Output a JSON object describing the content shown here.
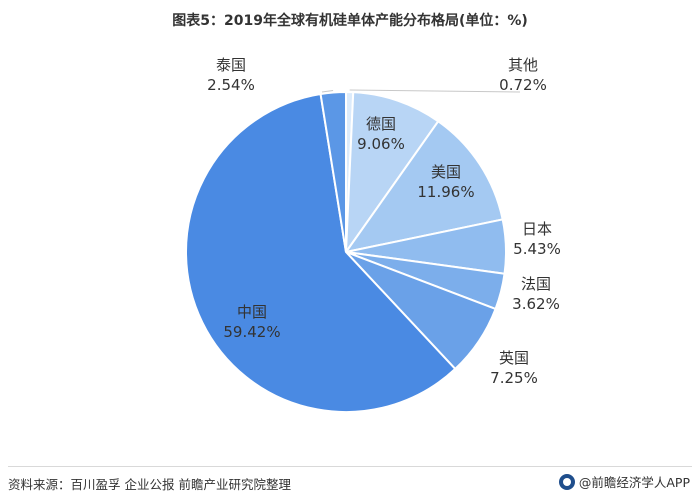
{
  "title": "图表5：2019年全球有机硅单体产能分布格局(单位：%)",
  "source": "资料来源：百川盈孚 企业公报 前瞻产业研究院整理",
  "brand": "@前瞻经济学人APP",
  "chart_data": {
    "type": "pie",
    "slices": [
      {
        "label": "其他",
        "value": 0.72,
        "display": "0.72%",
        "color": "#dcebfb"
      },
      {
        "label": "德国",
        "value": 9.06,
        "display": "9.06%",
        "color": "#b8d5f5"
      },
      {
        "label": "美国",
        "value": 11.96,
        "display": "11.96%",
        "color": "#a4c9f2"
      },
      {
        "label": "日本",
        "value": 5.43,
        "display": "5.43%",
        "color": "#90bcef"
      },
      {
        "label": "法国",
        "value": 3.62,
        "display": "3.62%",
        "color": "#7caeeb"
      },
      {
        "label": "英国",
        "value": 7.25,
        "display": "7.25%",
        "color": "#6aa1e8"
      },
      {
        "label": "中国",
        "value": 59.42,
        "display": "59.42%",
        "color": "#4a8ae3"
      },
      {
        "label": "泰国",
        "value": 2.54,
        "display": "2.54%",
        "color": "#5b97e6"
      }
    ]
  }
}
